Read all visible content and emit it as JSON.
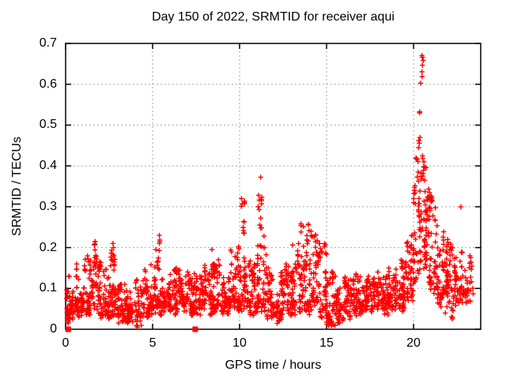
{
  "chart_data": {
    "type": "scatter",
    "title": "Day 150 of 2022, SRMTID for receiver aqui",
    "xlabel": "GPS time / hours",
    "ylabel": "SRMTID / TECUs",
    "xlim": [
      0,
      23.86
    ],
    "ylim": [
      0,
      0.7
    ],
    "x_ticks": [
      0,
      5,
      10,
      15,
      20
    ],
    "x_tick_labels": [
      "0",
      "5",
      "10",
      "15",
      "20"
    ],
    "y_ticks": [
      0,
      0.1,
      0.2,
      0.3,
      0.4,
      0.5,
      0.6,
      0.7
    ],
    "y_tick_labels": [
      "0",
      "0.1",
      "0.2",
      "0.3",
      "0.4",
      "0.5",
      "0.6",
      "0.7"
    ],
    "grid": true,
    "legend": "none",
    "marker": "plus-cross",
    "colors": {
      "points": "#ff0000",
      "grid": "#a6a6a6",
      "axis": "#000000",
      "background": "#ffffff"
    },
    "seed": 1337,
    "bin_columns": [
      "x_start_h",
      "x_end_h",
      "y_min_tecu",
      "y_max_tecu",
      "n_points",
      "low_skew"
    ],
    "point_bins": [
      [
        0.0,
        0.5,
        0.03,
        0.13,
        55,
        2.0
      ],
      [
        0.5,
        1.0,
        0.04,
        0.16,
        55,
        2.0
      ],
      [
        1.0,
        1.5,
        0.05,
        0.18,
        55,
        2.0
      ],
      [
        1.5,
        2.0,
        0.05,
        0.2,
        55,
        2.1
      ],
      [
        1.6,
        1.85,
        0.14,
        0.215,
        10,
        1.0
      ],
      [
        2.0,
        2.5,
        0.04,
        0.16,
        50,
        2.0
      ],
      [
        2.5,
        3.0,
        0.04,
        0.17,
        50,
        2.0
      ],
      [
        2.55,
        2.8,
        0.14,
        0.22,
        10,
        1.0
      ],
      [
        3.0,
        3.5,
        0.03,
        0.11,
        45,
        1.8
      ],
      [
        3.5,
        4.0,
        0.03,
        0.1,
        45,
        1.8
      ],
      [
        4.0,
        4.5,
        0.02,
        0.13,
        45,
        1.8
      ],
      [
        4.5,
        5.0,
        0.04,
        0.17,
        50,
        2.0
      ],
      [
        5.0,
        5.5,
        0.05,
        0.18,
        50,
        2.0
      ],
      [
        5.15,
        5.45,
        0.15,
        0.23,
        10,
        1.0
      ],
      [
        5.5,
        6.0,
        0.05,
        0.16,
        50,
        2.0
      ],
      [
        6.0,
        6.5,
        0.05,
        0.15,
        50,
        2.0
      ],
      [
        6.5,
        7.0,
        0.06,
        0.15,
        50,
        1.8
      ],
      [
        7.0,
        7.5,
        0.05,
        0.14,
        50,
        1.8
      ],
      [
        7.5,
        8.0,
        0.04,
        0.13,
        45,
        1.8
      ],
      [
        8.0,
        8.5,
        0.05,
        0.17,
        50,
        2.0
      ],
      [
        8.35,
        8.6,
        0.13,
        0.2,
        8,
        1.0
      ],
      [
        8.5,
        9.0,
        0.05,
        0.17,
        50,
        2.0
      ],
      [
        9.0,
        9.5,
        0.05,
        0.16,
        50,
        2.0
      ],
      [
        9.5,
        10.0,
        0.06,
        0.22,
        55,
        2.2
      ],
      [
        10.0,
        10.5,
        0.06,
        0.24,
        50,
        2.3
      ],
      [
        10.1,
        10.3,
        0.2,
        0.32,
        12,
        1.0
      ],
      [
        10.5,
        11.0,
        0.05,
        0.19,
        50,
        2.0
      ],
      [
        11.0,
        11.5,
        0.06,
        0.25,
        50,
        2.3
      ],
      [
        11.05,
        11.3,
        0.2,
        0.375,
        14,
        1.0
      ],
      [
        11.5,
        12.0,
        0.04,
        0.16,
        50,
        2.0
      ],
      [
        12.0,
        12.5,
        0.03,
        0.14,
        50,
        2.0
      ],
      [
        12.5,
        13.0,
        0.04,
        0.16,
        50,
        2.0
      ],
      [
        13.0,
        13.5,
        0.05,
        0.21,
        55,
        2.1
      ],
      [
        13.5,
        14.0,
        0.06,
        0.26,
        55,
        2.1
      ],
      [
        14.0,
        14.5,
        0.05,
        0.24,
        55,
        2.1
      ],
      [
        14.5,
        15.0,
        0.04,
        0.21,
        50,
        2.1
      ],
      [
        15.0,
        15.5,
        0.02,
        0.16,
        50,
        2.0
      ],
      [
        15.5,
        16.0,
        0.03,
        0.13,
        50,
        1.8
      ],
      [
        16.0,
        16.5,
        0.04,
        0.13,
        50,
        1.8
      ],
      [
        16.5,
        17.0,
        0.04,
        0.14,
        50,
        1.8
      ],
      [
        17.0,
        17.5,
        0.05,
        0.13,
        50,
        1.8
      ],
      [
        17.5,
        18.0,
        0.05,
        0.14,
        50,
        1.8
      ],
      [
        18.0,
        18.5,
        0.05,
        0.13,
        50,
        1.8
      ],
      [
        18.5,
        19.0,
        0.06,
        0.15,
        50,
        1.8
      ],
      [
        19.0,
        19.5,
        0.06,
        0.17,
        50,
        1.9
      ],
      [
        19.5,
        20.0,
        0.08,
        0.23,
        55,
        1.9
      ],
      [
        20.0,
        20.35,
        0.12,
        0.42,
        40,
        1.5
      ],
      [
        20.2,
        20.6,
        0.4,
        0.7,
        18,
        1.1
      ],
      [
        20.3,
        20.85,
        0.15,
        0.45,
        65,
        1.5
      ],
      [
        20.85,
        21.3,
        0.1,
        0.36,
        55,
        1.7
      ],
      [
        21.3,
        21.8,
        0.07,
        0.27,
        55,
        1.9
      ],
      [
        21.8,
        22.3,
        0.04,
        0.22,
        55,
        1.9
      ],
      [
        22.3,
        22.8,
        0.06,
        0.2,
        45,
        1.9
      ],
      [
        22.8,
        23.4,
        0.08,
        0.18,
        40,
        1.9
      ]
    ],
    "isolated_plus_points": [
      [
        22.72,
        0.3
      ]
    ],
    "baseline_square_points": [
      [
        0.15,
        0.0
      ],
      [
        7.45,
        0.0
      ]
    ]
  }
}
